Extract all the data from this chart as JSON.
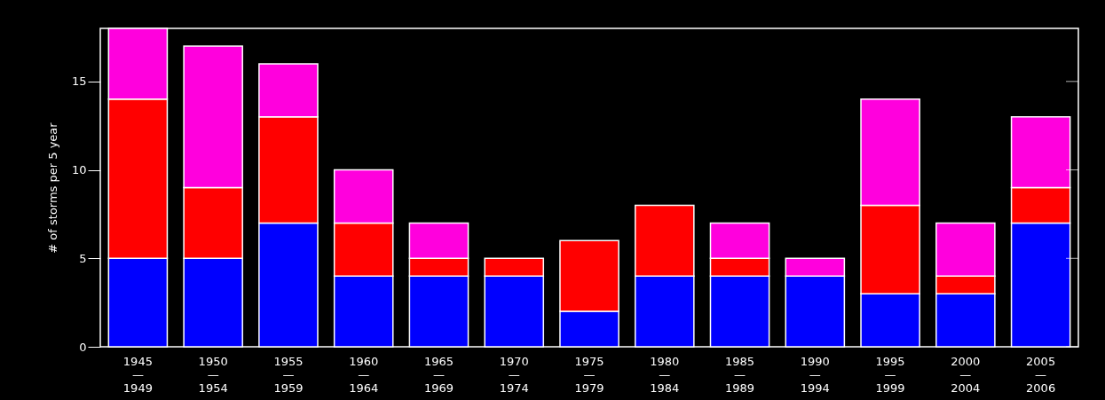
{
  "chart_data": {
    "type": "bar",
    "stacked": true,
    "ylabel": "# of storms per 5 year",
    "categories": [
      "1945\n—\n1949",
      "1950\n—\n1954",
      "1955\n—\n1959",
      "1960\n—\n1964",
      "1965\n—\n1969",
      "1970\n—\n1974",
      "1975\n—\n1979",
      "1980\n—\n1984",
      "1985\n—\n1989",
      "1990\n—\n1994",
      "1995\n—\n1999",
      "2000\n—\n2004",
      "2005\n—\n2006"
    ],
    "series": [
      {
        "color": "#0000ff",
        "values": [
          5,
          5,
          7,
          4,
          4,
          4,
          2,
          4,
          4,
          4,
          3,
          3,
          7
        ]
      },
      {
        "color": "#ff0000",
        "values": [
          9,
          4,
          6,
          3,
          1,
          1,
          4,
          4,
          1,
          0,
          5,
          1,
          2
        ]
      },
      {
        "color": "#ff00dd",
        "values": [
          4,
          8,
          3,
          3,
          2,
          0,
          0,
          0,
          2,
          1,
          6,
          3,
          4
        ]
      }
    ],
    "ylim": [
      0,
      18
    ],
    "yticks": [
      0,
      5,
      10,
      15
    ],
    "grid": false,
    "legend": false
  }
}
